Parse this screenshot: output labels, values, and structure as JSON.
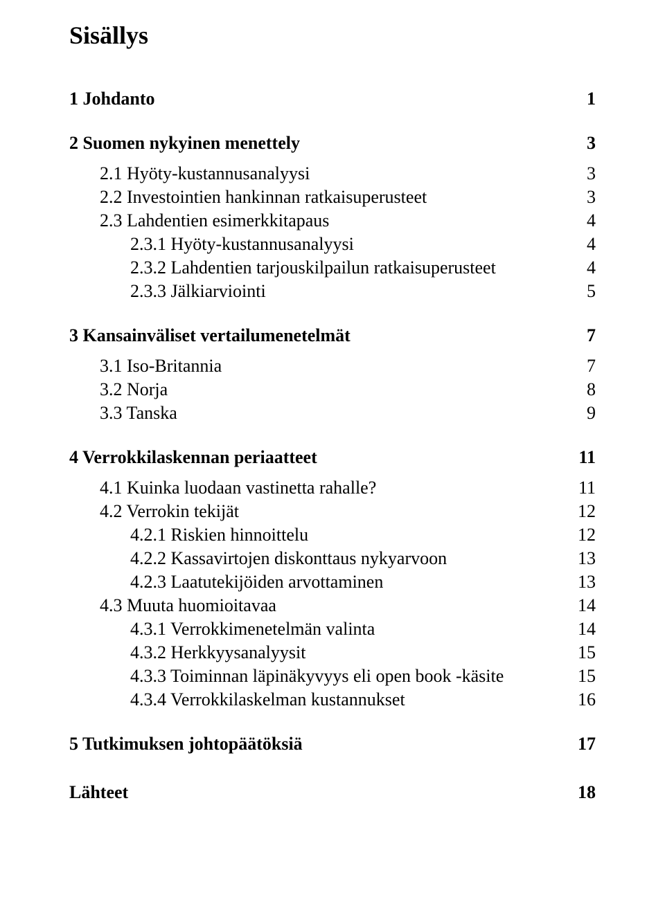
{
  "title": "Sisällys",
  "font": {
    "family": "Times New Roman",
    "title_size_pt": 27,
    "body_size_pt": 20
  },
  "colors": {
    "text": "#000000",
    "background": "#ffffff"
  },
  "toc": {
    "items": [
      {
        "level": 1,
        "label": "1 Johdanto",
        "page": "1"
      },
      {
        "level": 1,
        "label": "2 Suomen nykyinen menettely",
        "page": "3"
      },
      {
        "level": 2,
        "label": "2.1 Hyöty-kustannusanalyysi",
        "page": "3"
      },
      {
        "level": 2,
        "label": "2.2 Investointien hankinnan ratkaisuperusteet",
        "page": "3"
      },
      {
        "level": 2,
        "label": "2.3 Lahdentien esimerkkitapaus",
        "page": "4"
      },
      {
        "level": 3,
        "label": "2.3.1 Hyöty-kustannusanalyysi",
        "page": "4"
      },
      {
        "level": 3,
        "label": "2.3.2 Lahdentien tarjouskilpailun ratkaisuperusteet",
        "page": "4"
      },
      {
        "level": 3,
        "label": "2.3.3 Jälkiarviointi",
        "page": "5"
      },
      {
        "level": 1,
        "label": "3 Kansainväliset vertailumenetelmät",
        "page": "7"
      },
      {
        "level": 2,
        "label": "3.1 Iso-Britannia",
        "page": "7"
      },
      {
        "level": 2,
        "label": "3.2 Norja",
        "page": "8"
      },
      {
        "level": 2,
        "label": "3.3 Tanska",
        "page": "9"
      },
      {
        "level": 1,
        "label": "4 Verrokkilaskennan periaatteet",
        "page": "11"
      },
      {
        "level": 2,
        "label": "4.1 Kuinka luodaan vastinetta rahalle?",
        "page": "11"
      },
      {
        "level": 2,
        "label": "4.2 Verrokin tekijät",
        "page": "12"
      },
      {
        "level": 3,
        "label": "4.2.1 Riskien hinnoittelu",
        "page": "12"
      },
      {
        "level": 3,
        "label": "4.2.2 Kassavirtojen diskonttaus nykyarvoon",
        "page": "13"
      },
      {
        "level": 3,
        "label": "4.2.3 Laatutekijöiden arvottaminen",
        "page": "13"
      },
      {
        "level": 2,
        "label": "4.3 Muuta huomioitavaa",
        "page": "14"
      },
      {
        "level": 3,
        "label": "4.3.1 Verrokkimenetelmän valinta",
        "page": "14"
      },
      {
        "level": 3,
        "label": "4.3.2 Herkkyysanalyysit",
        "page": "15"
      },
      {
        "level": 3,
        "label": "4.3.3 Toiminnan läpinäkyvyys eli open book -käsite",
        "page": "15"
      },
      {
        "level": 3,
        "label": "4.3.4 Verrokkilaskelman kustannukset",
        "page": "16"
      },
      {
        "level": 1,
        "label": "5 Tutkimuksen johtopäätöksiä",
        "page": "17"
      },
      {
        "level": 1,
        "label": "Lähteet",
        "page": "18",
        "extra_top": true
      }
    ]
  }
}
